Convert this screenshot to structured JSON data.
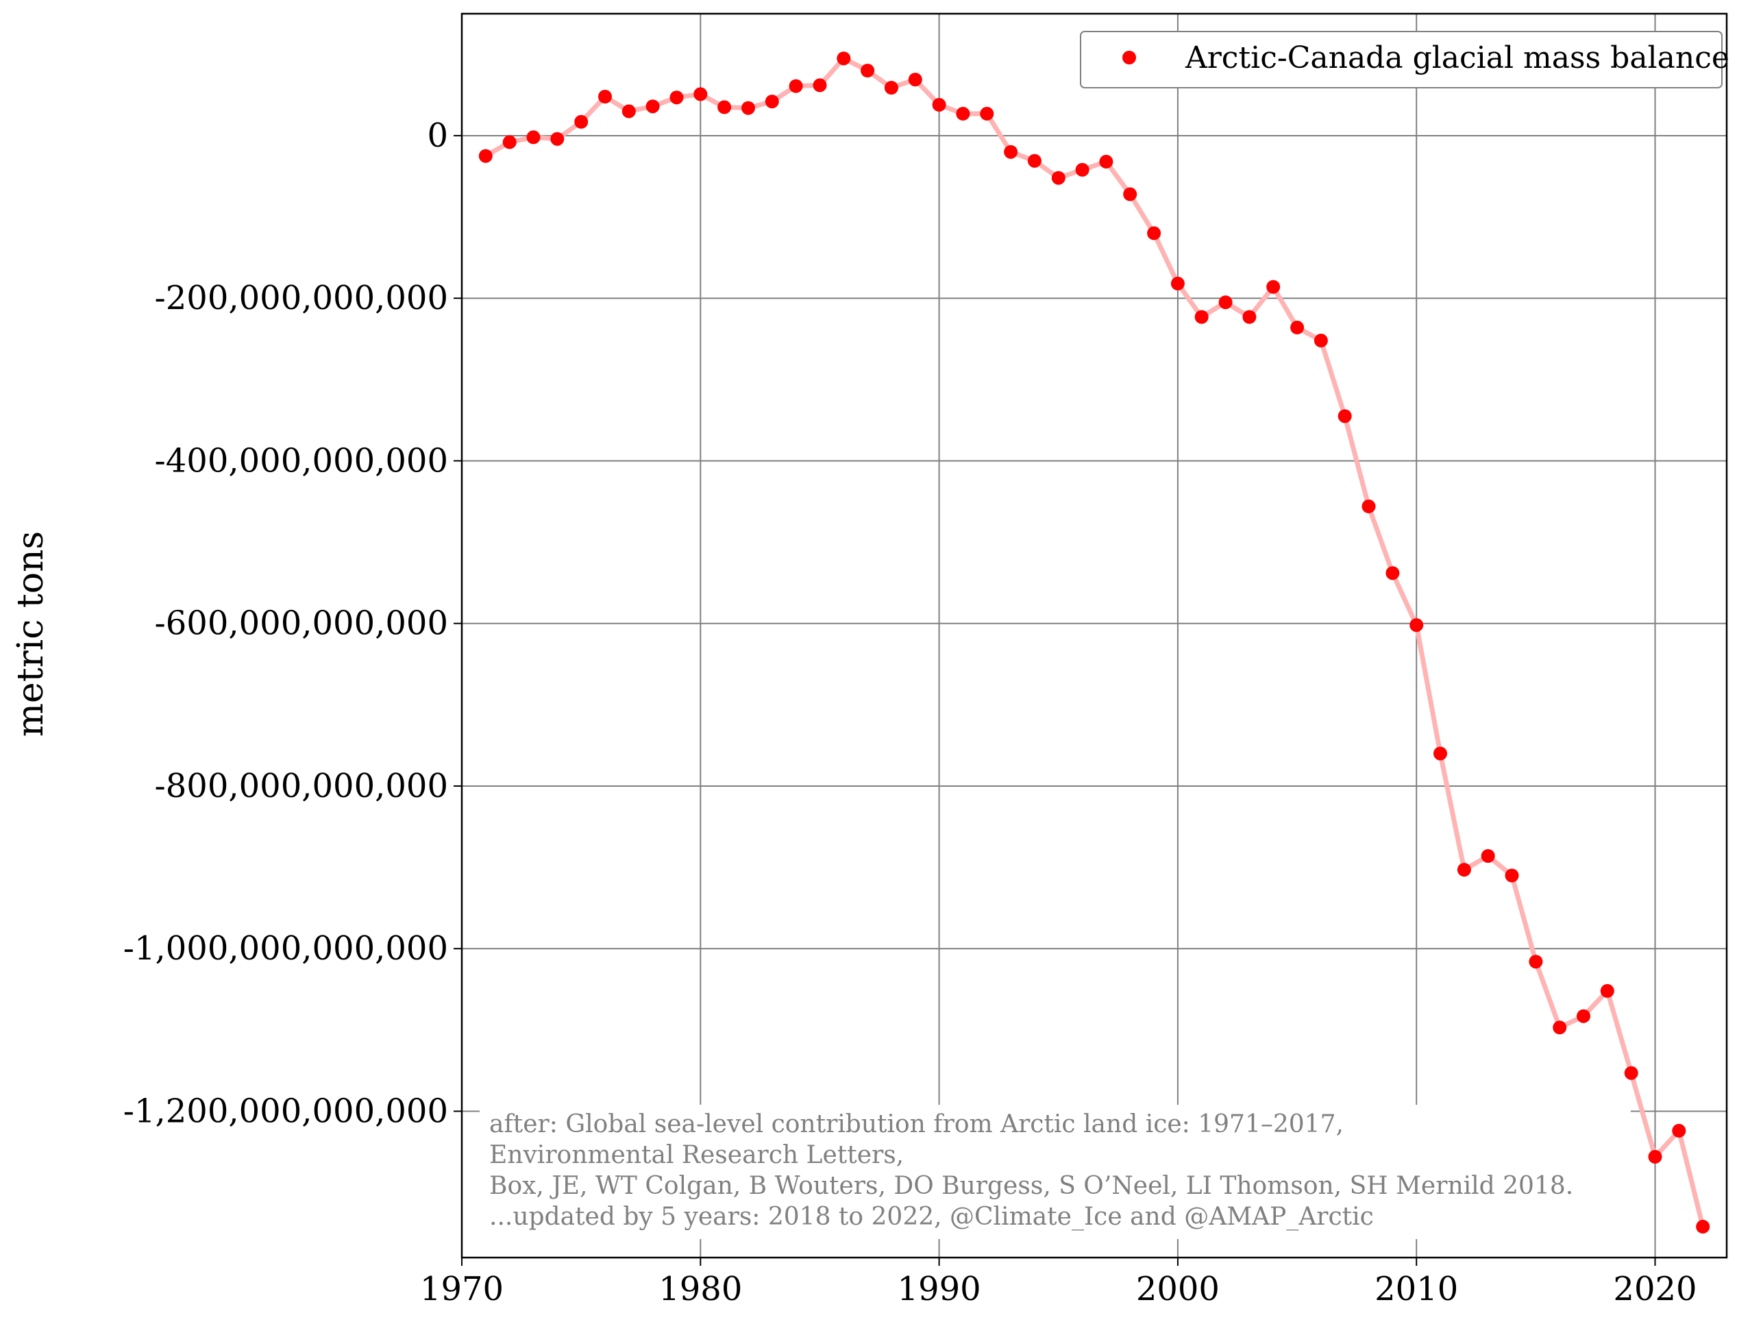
{
  "chart_data": {
    "type": "line",
    "title": "",
    "xlabel": "",
    "ylabel": "metric tons",
    "xlim": [
      1970,
      2023
    ],
    "ylim": [
      -1380000000000,
      150000000000
    ],
    "grid": true,
    "legend_position": "top-right",
    "x_ticks": [
      {
        "value": 1970,
        "label": "1970"
      },
      {
        "value": 1980,
        "label": "1980"
      },
      {
        "value": 1990,
        "label": "1990"
      },
      {
        "value": 2000,
        "label": "2000"
      },
      {
        "value": 2010,
        "label": "2010"
      },
      {
        "value": 2020,
        "label": "2020"
      }
    ],
    "y_ticks": [
      {
        "value": 0,
        "label": "0"
      },
      {
        "value": -200000000000,
        "label": "-200,000,000,000"
      },
      {
        "value": -400000000000,
        "label": "-400,000,000,000"
      },
      {
        "value": -600000000000,
        "label": "-600,000,000,000"
      },
      {
        "value": -800000000000,
        "label": "-800,000,000,000"
      },
      {
        "value": -1000000000000,
        "label": "-1,000,000,000,000"
      },
      {
        "value": -1200000000000,
        "label": "-1,200,000,000,000"
      }
    ],
    "series": [
      {
        "name": "Arctic-Canada glacial mass balance",
        "marker_color": "#ff0000",
        "line_color": "#ffb3b3",
        "x": [
          1971,
          1972,
          1973,
          1974,
          1975,
          1976,
          1977,
          1978,
          1979,
          1980,
          1981,
          1982,
          1983,
          1984,
          1985,
          1986,
          1987,
          1988,
          1989,
          1990,
          1991,
          1992,
          1993,
          1994,
          1995,
          1996,
          1997,
          1998,
          1999,
          2000,
          2001,
          2002,
          2003,
          2004,
          2005,
          2006,
          2007,
          2008,
          2009,
          2010,
          2011,
          2012,
          2013,
          2014,
          2015,
          2016,
          2017,
          2018,
          2019,
          2020,
          2021,
          2022
        ],
        "y": [
          -25000000000,
          -8000000000,
          -2000000000,
          -4000000000,
          17000000000,
          48000000000,
          30000000000,
          36000000000,
          47000000000,
          51000000000,
          35000000000,
          34000000000,
          42000000000,
          61000000000,
          62000000000,
          95000000000,
          80000000000,
          59000000000,
          69000000000,
          38000000000,
          27000000000,
          27000000000,
          -20000000000,
          -31000000000,
          -52000000000,
          -42000000000,
          -32000000000,
          -72000000000,
          -120000000000,
          -182000000000,
          -223000000000,
          -205000000000,
          -223000000000,
          -186000000000,
          -236000000000,
          -252000000000,
          -345000000000,
          -456000000000,
          -538000000000,
          -602000000000,
          -760000000000,
          -903000000000,
          -886000000000,
          -910000000000,
          -1016000000000,
          -1097000000000,
          -1083000000000,
          -1052000000000,
          -1153000000000,
          -1256000000000,
          -1224000000000,
          -1342000000000
        ]
      }
    ],
    "annotation": [
      "after: Global sea-level contribution from Arctic land ice: 1971–2017,",
      "Environmental Research Letters,",
      "Box, JE, WT Colgan, B Wouters, DO Burgess, S O’Neel, LI Thomson, SH Mernild 2018.",
      "...updated by 5 years: 2018 to 2022, @Climate_Ice and @AMAP_Arctic"
    ],
    "colors": {
      "grid": "#808080",
      "axis": "#000000",
      "annotation_text": "#808080",
      "legend_border": "#808080"
    }
  }
}
